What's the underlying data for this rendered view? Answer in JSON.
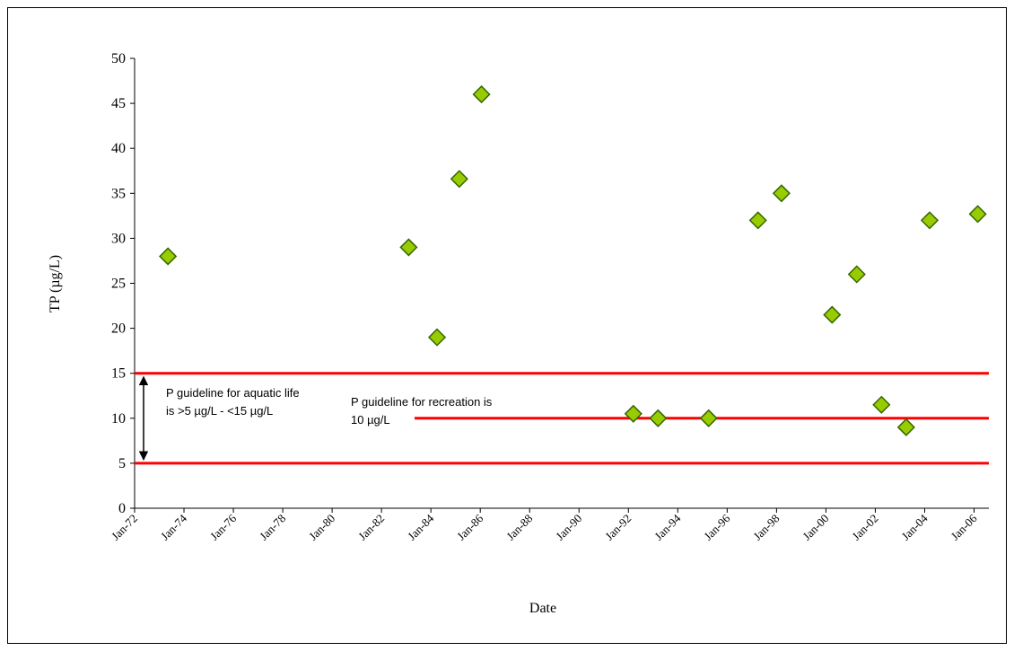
{
  "chart_data": {
    "type": "scatter",
    "x_label": "Date",
    "y_label": "TP (µg/L)",
    "x": [
      1973.35,
      1983.1,
      1984.25,
      1985.15,
      1986.05,
      1992.2,
      1993.2,
      1995.25,
      1997.25,
      1998.2,
      2000.25,
      2001.25,
      2002.25,
      2003.25,
      2004.2,
      2006.15
    ],
    "values": [
      28,
      29,
      19,
      36.6,
      46,
      10.5,
      10,
      10,
      32,
      35,
      21.5,
      26,
      11.5,
      9,
      32,
      32.7
    ],
    "color": "#99cc00",
    "edge_color": "#336600",
    "xlim": [
      1972,
      2006.6
    ],
    "xticks": [
      {
        "value": 1972,
        "label": "Jan-72"
      },
      {
        "value": 1974,
        "label": "Jan-74"
      },
      {
        "value": 1976,
        "label": "Jan-76"
      },
      {
        "value": 1978,
        "label": "Jan-78"
      },
      {
        "value": 1980,
        "label": "Jan-80"
      },
      {
        "value": 1982,
        "label": "Jan-82"
      },
      {
        "value": 1984,
        "label": "Jan-84"
      },
      {
        "value": 1986,
        "label": "Jan-86"
      },
      {
        "value": 1988,
        "label": "Jan-88"
      },
      {
        "value": 1990,
        "label": "Jan-90"
      },
      {
        "value": 1992,
        "label": "Jan-92"
      },
      {
        "value": 1994,
        "label": "Jan-94"
      },
      {
        "value": 1996,
        "label": "Jan-96"
      },
      {
        "value": 1998,
        "label": "Jan-98"
      },
      {
        "value": 2000,
        "label": "Jan-00"
      },
      {
        "value": 2002,
        "label": "Jan-02"
      },
      {
        "value": 2004,
        "label": "Jan-04"
      },
      {
        "value": 2006,
        "label": "Jan-06"
      }
    ],
    "ylim": [
      0,
      50
    ],
    "yticks": [
      0,
      5,
      10,
      15,
      20,
      25,
      30,
      35,
      40,
      45,
      50
    ],
    "reference_lines": [
      {
        "value": 15,
        "color": "#ff0000"
      },
      {
        "value": 5,
        "color": "#ff0000"
      },
      {
        "value": 10,
        "color": "#ff0000"
      }
    ],
    "annotations": [
      {
        "lines": [
          "P guideline for aquatic life",
          "is >5 µg/L - <15 µg/L"
        ]
      },
      {
        "lines": [
          "P guideline for recreation is",
          "10 µg/L"
        ]
      }
    ]
  }
}
